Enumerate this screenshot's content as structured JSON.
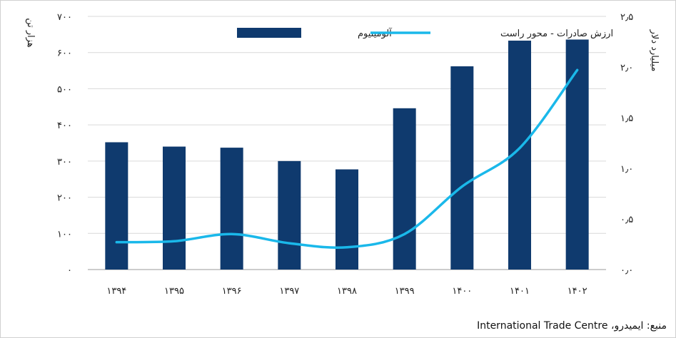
{
  "chart_data": {
    "type": "bar+line",
    "categories": [
      "۱۳۹۴",
      "۱۳۹۵",
      "۱۳۹۶",
      "۱۳۹۷",
      "۱۳۹۸",
      "۱۳۹۹",
      "۱۴۰۰",
      "۱۴۰۱",
      "۱۴۰۲"
    ],
    "series": [
      {
        "name": "آلومینیوم",
        "type": "bar",
        "axis": "left",
        "color": "#0f3a6e",
        "values": [
          352,
          340,
          337,
          300,
          277,
          446,
          562,
          633,
          636
        ]
      },
      {
        "name": "ارزش صادرات - محور راست",
        "type": "line",
        "axis": "right",
        "color": "#1ab8ea",
        "values": [
          0.27,
          0.28,
          0.35,
          0.26,
          0.22,
          0.35,
          0.82,
          1.2,
          1.97
        ]
      }
    ],
    "y_left": {
      "label": "هزار تن",
      "range": [
        0,
        700
      ],
      "ticks": [
        0,
        100,
        200,
        300,
        400,
        500,
        600,
        700
      ],
      "tick_labels": [
        "۰",
        "۱۰۰",
        "۲۰۰",
        "۳۰۰",
        "۴۰۰",
        "۵۰۰",
        "۶۰۰",
        "۷۰۰"
      ]
    },
    "y_right": {
      "label": "میلیارد دلار",
      "range": [
        0,
        2.5
      ],
      "ticks": [
        0,
        0.5,
        1.0,
        1.5,
        2.0,
        2.5
      ],
      "tick_labels": [
        "۰٫۰",
        "۰٫۵",
        "۱٫۰",
        "۱٫۵",
        "۲٫۰",
        "۲٫۵"
      ]
    },
    "grid": true,
    "legend": "top"
  },
  "source": {
    "prefix": "منبع: ایمیدرو،",
    "org": "International Trade Centre"
  }
}
